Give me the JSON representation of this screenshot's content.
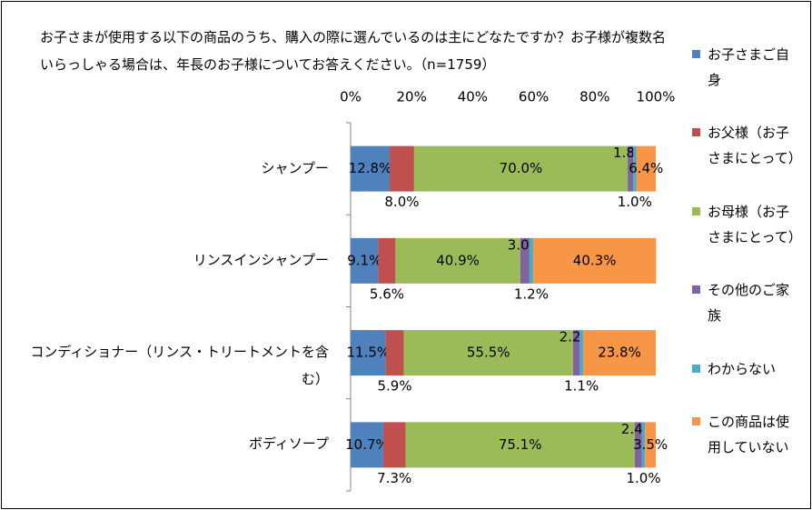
{
  "chart_data": {
    "type": "stacked_barh",
    "title": "お子さまが使用する以下の商品のうち、購入の際に選んでいるのは主にどなたですか？お子様が複数名いらっしゃる場合は、年長のお子様についてお答えください。（n=1759）",
    "categories": [
      "シャンプー",
      "リンスインシャンプー",
      "コンディショナー（リンス・トリートメントを含む）",
      "ボディソープ"
    ],
    "series": [
      {
        "name": "お子さまご自身",
        "color": "#4f81bd",
        "values": [
          12.8,
          9.1,
          11.5,
          10.7
        ],
        "value_labels": [
          "12.8%",
          "9.1%",
          "11.5%",
          "10.7%"
        ]
      },
      {
        "name": "お父様（お子さまにとって）",
        "color": "#c0504d",
        "values": [
          8.0,
          5.6,
          5.9,
          7.3
        ],
        "value_labels": [
          "8.0%",
          "5.6%",
          "5.9%",
          "7.3%"
        ]
      },
      {
        "name": "お母様（お子さまにとって）",
        "color": "#9bbb59",
        "values": [
          70.0,
          40.9,
          55.5,
          75.1
        ],
        "value_labels": [
          "70.0%",
          "40.9%",
          "55.5%",
          "75.1%"
        ]
      },
      {
        "name": "その他のご家族",
        "color": "#8064a2",
        "values": [
          1.8,
          3.0,
          2.2,
          2.4
        ],
        "value_labels": [
          "1.8%",
          "3.0%",
          "2.2%",
          "2.4%"
        ]
      },
      {
        "name": "わからない",
        "color": "#4bacc6",
        "values": [
          1.0,
          1.2,
          1.1,
          1.0
        ],
        "value_labels": [
          "1.0%",
          "1.2%",
          "1.1%",
          "1.0%"
        ]
      },
      {
        "name": "この商品は使用していない",
        "color": "#f79646",
        "values": [
          6.4,
          40.3,
          23.8,
          3.5
        ],
        "value_labels": [
          "6.4%",
          "40.3%",
          "23.8%",
          "3.5%"
        ]
      }
    ],
    "xlim": [
      0,
      100
    ],
    "xticks": [
      {
        "value": 0,
        "label": "0%"
      },
      {
        "value": 20,
        "label": "20%"
      },
      {
        "value": 40,
        "label": "40%"
      },
      {
        "value": 60,
        "label": "60%"
      },
      {
        "value": 80,
        "label": "80%"
      },
      {
        "value": 100,
        "label": "100%"
      }
    ],
    "legend": "right"
  }
}
